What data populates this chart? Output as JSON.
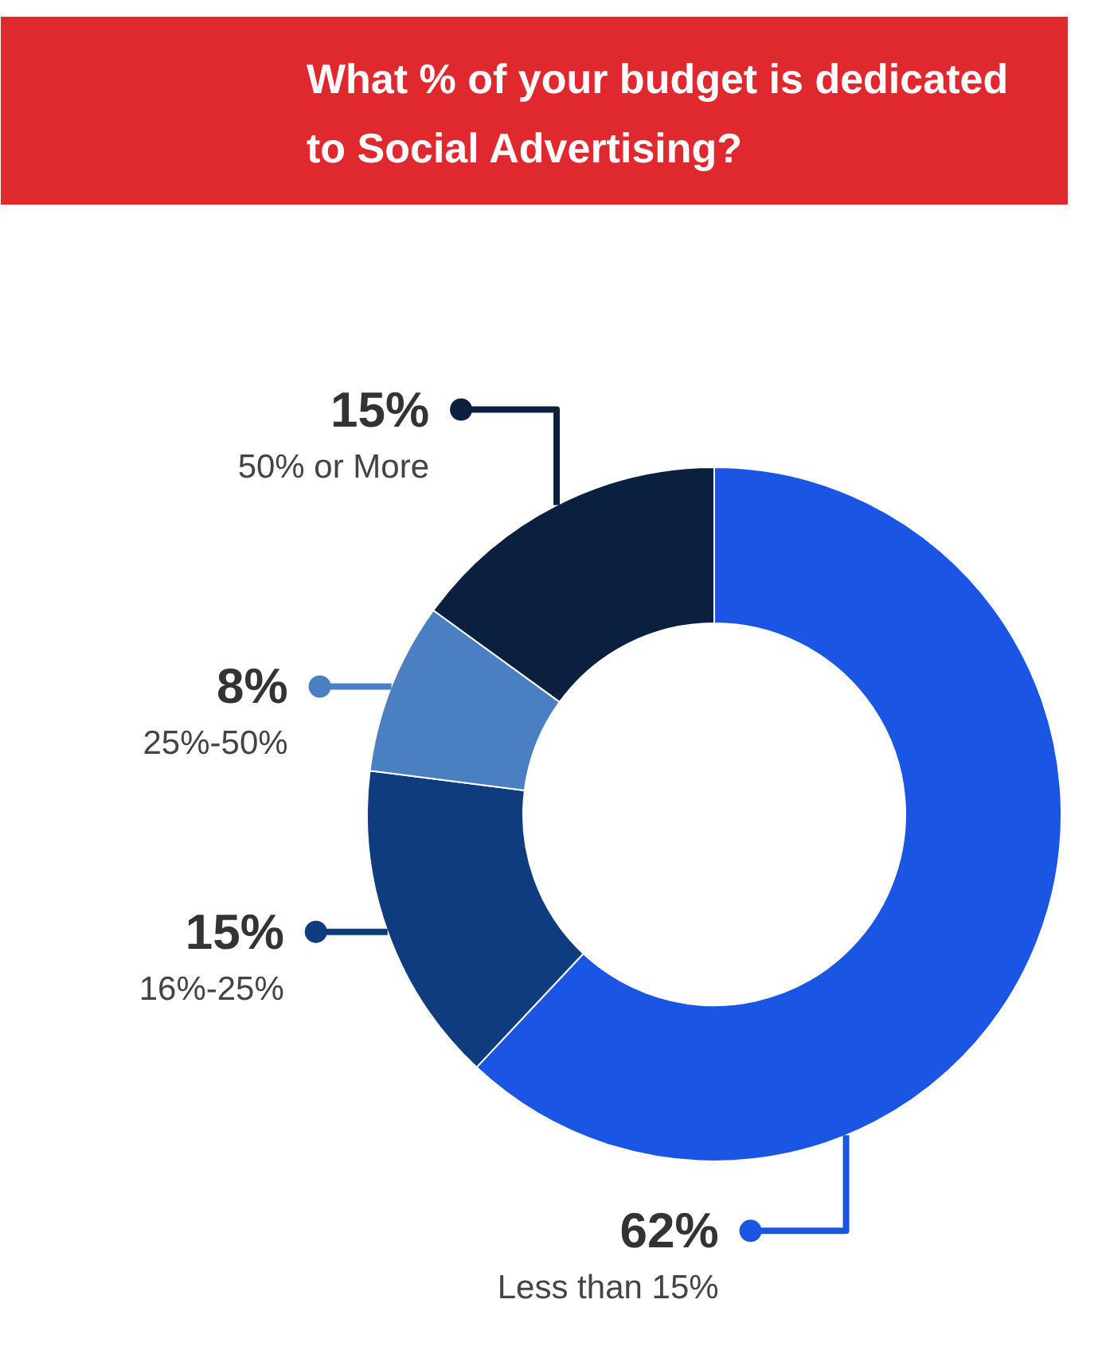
{
  "chart_data": {
    "type": "donut",
    "title": "What % of your budget is dedicated to Social Advertising?",
    "categories": [
      "Less than 15%",
      "16%-25%",
      "25%-50%",
      "50% or More"
    ],
    "values": [
      62,
      15,
      8,
      15
    ],
    "colors": [
      "#1a55e3",
      "#0e3c7f",
      "#4a80c1",
      "#0b1f3f"
    ],
    "value_labels": [
      "62%",
      "15%",
      "8%",
      "15%"
    ],
    "legend": "left"
  }
}
